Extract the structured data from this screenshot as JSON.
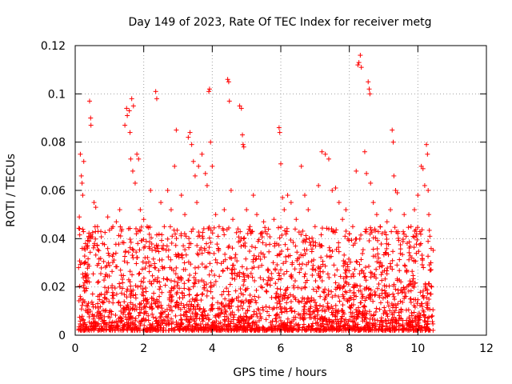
{
  "chart_data": {
    "type": "scatter",
    "title": "Day 149 of 2023, Rate Of TEC Index for receiver metg",
    "xlabel": "GPS time / hours",
    "ylabel": "ROTI / TECUs",
    "xlim": [
      0,
      12
    ],
    "ylim": [
      0,
      0.12
    ],
    "xticks": [
      0,
      2,
      4,
      6,
      8,
      10,
      12
    ],
    "xtick_labels": [
      "0",
      "2",
      "4",
      "6",
      "8",
      "10",
      "12"
    ],
    "yticks": [
      0,
      0.02,
      0.04,
      0.06,
      0.08,
      0.1,
      0.12
    ],
    "ytick_labels": [
      "0",
      "0.02",
      "0.04",
      "0.06",
      "0.08",
      "0.1",
      "0.12"
    ],
    "grid": true,
    "marker": "+",
    "color": "#ff0000",
    "series": [
      {
        "name": "ROTI",
        "points": [
          [
            0.15,
            0.075
          ],
          [
            0.18,
            0.066
          ],
          [
            0.2,
            0.063
          ],
          [
            0.22,
            0.058
          ],
          [
            0.25,
            0.072
          ],
          [
            0.12,
            0.049
          ],
          [
            0.3,
            0.038
          ],
          [
            0.28,
            0.03
          ],
          [
            0.1,
            0.028
          ],
          [
            0.35,
            0.022
          ],
          [
            0.42,
            0.097
          ],
          [
            0.45,
            0.09
          ],
          [
            0.46,
            0.087
          ],
          [
            0.55,
            0.055
          ],
          [
            0.6,
            0.053
          ],
          [
            0.65,
            0.045
          ],
          [
            0.8,
            0.038
          ],
          [
            0.95,
            0.049
          ],
          [
            1.1,
            0.045
          ],
          [
            1.2,
            0.047
          ],
          [
            1.3,
            0.052
          ],
          [
            1.45,
            0.087
          ],
          [
            1.5,
            0.094
          ],
          [
            1.52,
            0.091
          ],
          [
            1.58,
            0.093
          ],
          [
            1.6,
            0.084
          ],
          [
            1.65,
            0.098
          ],
          [
            1.7,
            0.095
          ],
          [
            1.62,
            0.073
          ],
          [
            1.68,
            0.068
          ],
          [
            1.8,
            0.075
          ],
          [
            1.85,
            0.073
          ],
          [
            1.75,
            0.063
          ],
          [
            1.9,
            0.052
          ],
          [
            2.0,
            0.048
          ],
          [
            2.1,
            0.045
          ],
          [
            2.2,
            0.06
          ],
          [
            2.35,
            0.101
          ],
          [
            2.38,
            0.098
          ],
          [
            2.5,
            0.055
          ],
          [
            2.6,
            0.045
          ],
          [
            2.7,
            0.06
          ],
          [
            2.8,
            0.052
          ],
          [
            2.9,
            0.07
          ],
          [
            2.95,
            0.085
          ],
          [
            3.1,
            0.058
          ],
          [
            3.2,
            0.05
          ],
          [
            3.3,
            0.082
          ],
          [
            3.35,
            0.084
          ],
          [
            3.4,
            0.079
          ],
          [
            3.45,
            0.072
          ],
          [
            3.5,
            0.066
          ],
          [
            3.55,
            0.055
          ],
          [
            3.6,
            0.07
          ],
          [
            3.7,
            0.075
          ],
          [
            3.8,
            0.067
          ],
          [
            3.85,
            0.062
          ],
          [
            3.9,
            0.101
          ],
          [
            3.92,
            0.102
          ],
          [
            3.95,
            0.08
          ],
          [
            4.0,
            0.07
          ],
          [
            4.1,
            0.05
          ],
          [
            4.2,
            0.045
          ],
          [
            4.35,
            0.052
          ],
          [
            4.45,
            0.106
          ],
          [
            4.48,
            0.105
          ],
          [
            4.5,
            0.097
          ],
          [
            4.55,
            0.06
          ],
          [
            4.6,
            0.048
          ],
          [
            4.8,
            0.095
          ],
          [
            4.85,
            0.094
          ],
          [
            4.88,
            0.083
          ],
          [
            4.9,
            0.079
          ],
          [
            4.92,
            0.078
          ],
          [
            5.0,
            0.052
          ],
          [
            5.1,
            0.045
          ],
          [
            5.2,
            0.058
          ],
          [
            5.3,
            0.05
          ],
          [
            5.5,
            0.047
          ],
          [
            5.6,
            0.042
          ],
          [
            5.8,
            0.048
          ],
          [
            5.95,
            0.086
          ],
          [
            5.97,
            0.084
          ],
          [
            6.0,
            0.071
          ],
          [
            6.05,
            0.057
          ],
          [
            6.1,
            0.052
          ],
          [
            6.2,
            0.058
          ],
          [
            6.3,
            0.055
          ],
          [
            6.45,
            0.048
          ],
          [
            6.6,
            0.07
          ],
          [
            6.7,
            0.058
          ],
          [
            6.8,
            0.052
          ],
          [
            7.0,
            0.045
          ],
          [
            7.1,
            0.062
          ],
          [
            7.2,
            0.076
          ],
          [
            7.3,
            0.075
          ],
          [
            7.4,
            0.073
          ],
          [
            7.5,
            0.06
          ],
          [
            7.6,
            0.061
          ],
          [
            7.7,
            0.055
          ],
          [
            7.8,
            0.048
          ],
          [
            7.9,
            0.052
          ],
          [
            8.0,
            0.042
          ],
          [
            8.1,
            0.045
          ],
          [
            8.2,
            0.068
          ],
          [
            8.25,
            0.112
          ],
          [
            8.28,
            0.113
          ],
          [
            8.32,
            0.116
          ],
          [
            8.35,
            0.111
          ],
          [
            8.45,
            0.076
          ],
          [
            8.5,
            0.067
          ],
          [
            8.55,
            0.105
          ],
          [
            8.58,
            0.102
          ],
          [
            8.6,
            0.1
          ],
          [
            8.62,
            0.063
          ],
          [
            8.7,
            0.055
          ],
          [
            8.8,
            0.05
          ],
          [
            8.9,
            0.045
          ],
          [
            9.1,
            0.047
          ],
          [
            9.2,
            0.052
          ],
          [
            9.25,
            0.085
          ],
          [
            9.28,
            0.08
          ],
          [
            9.3,
            0.066
          ],
          [
            9.35,
            0.06
          ],
          [
            9.4,
            0.059
          ],
          [
            9.6,
            0.05
          ],
          [
            9.8,
            0.045
          ],
          [
            9.9,
            0.052
          ],
          [
            10.0,
            0.058
          ],
          [
            10.1,
            0.07
          ],
          [
            10.15,
            0.069
          ],
          [
            10.2,
            0.062
          ],
          [
            10.25,
            0.079
          ],
          [
            10.28,
            0.075
          ],
          [
            10.3,
            0.06
          ],
          [
            10.32,
            0.05
          ],
          [
            10.35,
            0.041
          ],
          [
            10.38,
            0.03
          ],
          [
            10.4,
            0.02
          ],
          [
            10.42,
            0.008
          ]
        ]
      }
    ],
    "dense_band": {
      "x_range": [
        0.1,
        10.45
      ],
      "y_range": [
        0.002,
        0.045
      ],
      "note": "dense cloud of + markers; highest density below 0.02"
    }
  }
}
